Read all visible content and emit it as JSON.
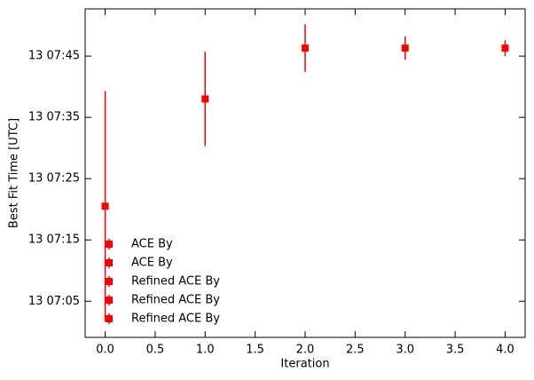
{
  "chart_data": {
    "type": "errorbar",
    "xlabel": "Iteration",
    "ylabel": "Best Fit Time [UTC]",
    "xlim": [
      -0.2,
      4.2
    ],
    "xticks": [
      {
        "value": 0,
        "label": "0.0"
      },
      {
        "value": 0.5,
        "label": "0.5"
      },
      {
        "value": 1,
        "label": "1.0"
      },
      {
        "value": 1.5,
        "label": "1.5"
      },
      {
        "value": 2,
        "label": "2.0"
      },
      {
        "value": 2.5,
        "label": "2.5"
      },
      {
        "value": 3,
        "label": "3.0"
      },
      {
        "value": 3.5,
        "label": "3.5"
      },
      {
        "value": 4,
        "label": "4.0"
      }
    ],
    "ylim": [
      -0.9,
      52.7
    ],
    "yticks": [
      {
        "value": 5,
        "label": "13 07:05"
      },
      {
        "value": 15,
        "label": "13 07:15"
      },
      {
        "value": 25,
        "label": "13 07:25"
      },
      {
        "value": 35,
        "label": "13 07:35"
      },
      {
        "value": 45,
        "label": "13 07:45"
      }
    ],
    "legend": "lower left",
    "series": [
      {
        "name": "ACE By",
        "color": "#ff0000",
        "x": [
          0
        ],
        "values": [
          20.5
        ],
        "errors": [
          18.8
        ]
      },
      {
        "name": "ACE By",
        "color": "#ff0000",
        "x": [
          1
        ],
        "values": [
          38.0
        ],
        "errors": [
          7.7
        ]
      },
      {
        "name": "Refined ACE By",
        "color": "#ff0000",
        "x": [
          2
        ],
        "values": [
          46.3
        ],
        "errors": [
          3.9
        ]
      },
      {
        "name": "Refined ACE By",
        "color": "#ff0000",
        "x": [
          3
        ],
        "values": [
          46.3
        ],
        "errors": [
          1.9
        ]
      },
      {
        "name": "Refined ACE By",
        "color": "#ff0000",
        "x": [
          4
        ],
        "values": [
          46.3
        ],
        "errors": [
          1.3
        ]
      }
    ]
  }
}
